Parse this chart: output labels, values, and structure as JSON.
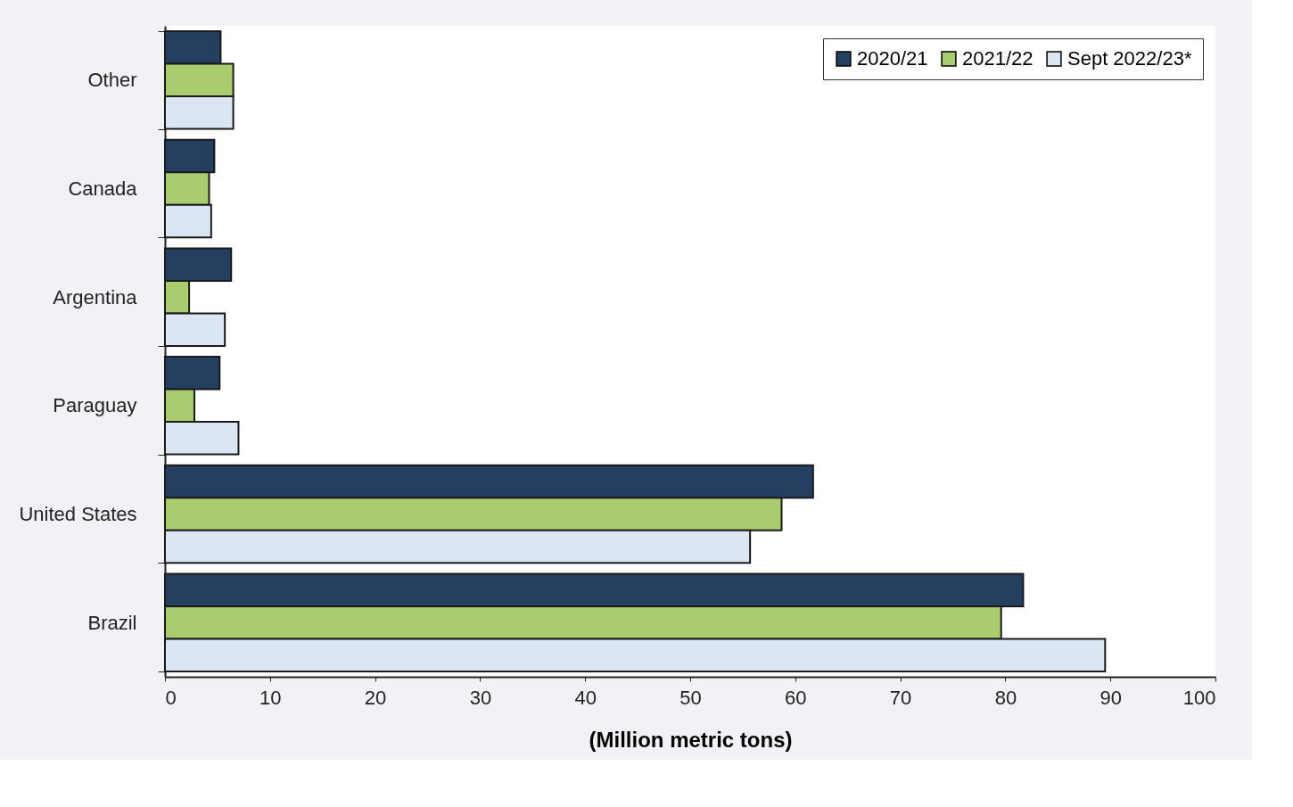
{
  "chart_data": {
    "type": "bar",
    "orientation": "horizontal",
    "xlabel": "(Million metric tons)",
    "categories": [
      "Other",
      "Canada",
      "Argentina",
      "Paraguay",
      "United States",
      "Brazil"
    ],
    "series": [
      {
        "name": "2020/21",
        "color": "#243f60",
        "values": [
          5.3,
          4.7,
          6.3,
          5.2,
          61.7,
          81.7
        ]
      },
      {
        "name": "2021/22",
        "color": "#a9cc6e",
        "values": [
          6.5,
          4.2,
          2.3,
          2.8,
          58.7,
          79.6
        ]
      },
      {
        "name": "Sept 2022/23*",
        "color": "#dce6f2",
        "values": [
          6.5,
          4.4,
          5.7,
          7.0,
          55.7,
          89.5
        ]
      }
    ],
    "xlim": [
      0,
      100
    ],
    "xticks": [
      0,
      10,
      20,
      30,
      40,
      50,
      60,
      70,
      80,
      90,
      100
    ],
    "grid": false,
    "legend": "top right"
  }
}
